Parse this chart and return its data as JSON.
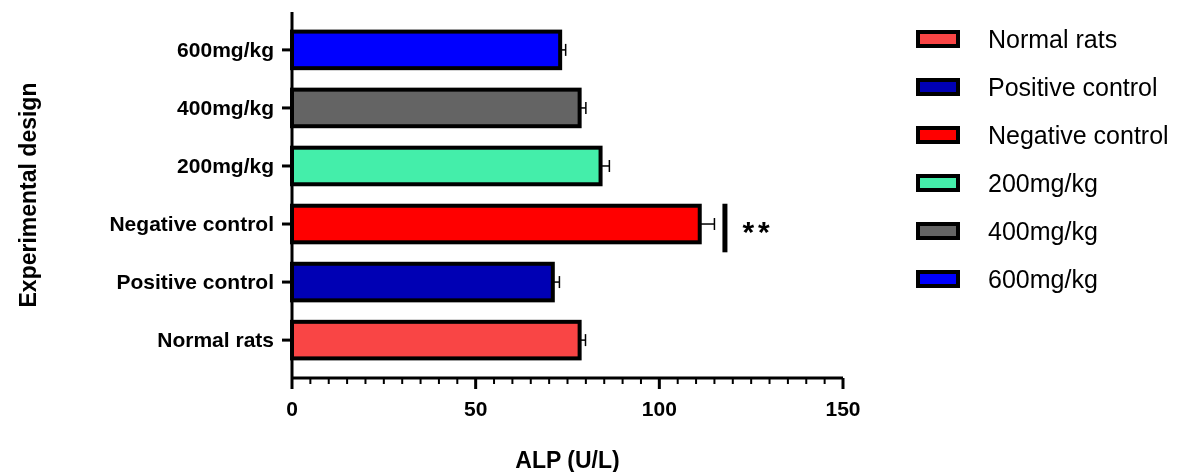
{
  "chart_data": {
    "type": "bar",
    "orientation": "horizontal",
    "xlabel": "ALP (U/L)",
    "ylabel": "Experimental design",
    "categories": [
      "600mg/kg",
      "400mg/kg",
      "200mg/kg",
      "Negative control",
      "Positive control",
      "Normal rats"
    ],
    "series": [
      {
        "name": "Normal rats",
        "color": "#f94545",
        "values": [
          null,
          null,
          null,
          null,
          null,
          78.3
        ],
        "errors": [
          null,
          null,
          null,
          null,
          null,
          1.6
        ]
      },
      {
        "name": "Positive control",
        "color": "#0000b4",
        "values": [
          null,
          null,
          null,
          null,
          71,
          null
        ],
        "errors": [
          null,
          null,
          null,
          null,
          1.8,
          null
        ]
      },
      {
        "name": "Negative control",
        "color": "#ff0000",
        "values": [
          null,
          null,
          null,
          111,
          null,
          null
        ],
        "errors": [
          null,
          null,
          null,
          4,
          null,
          null
        ]
      },
      {
        "name": "200mg/kg",
        "color": "#44eeaa",
        "values": [
          null,
          null,
          84,
          null,
          null,
          null
        ],
        "errors": [
          null,
          null,
          2.4,
          null,
          null,
          null
        ]
      },
      {
        "name": "400mg/kg",
        "color": "#646464",
        "values": [
          null,
          78.3,
          null,
          null,
          null,
          null
        ],
        "errors": [
          null,
          1.7,
          null,
          null,
          null,
          null
        ]
      },
      {
        "name": "600mg/kg",
        "color": "#0000ff",
        "values": [
          73,
          null,
          null,
          null,
          null,
          null
        ],
        "errors": [
          1.5,
          null,
          null,
          null,
          null,
          null
        ]
      }
    ],
    "xlim": [
      0,
      150
    ],
    "xticks": [
      0,
      {
        "value": 5,
        "label": null
      },
      {
        "value": 10,
        "label": null
      },
      {
        "value": 15,
        "label": null
      },
      {
        "value": 20,
        "label": null
      },
      {
        "value": 25,
        "label": null
      },
      {
        "value": 30,
        "label": null
      },
      {
        "value": 35,
        "label": null
      },
      {
        "value": 40,
        "label": null
      },
      {
        "value": 45,
        "label": null
      },
      50,
      {
        "value": 55,
        "label": null
      },
      {
        "value": 60,
        "label": null
      },
      {
        "value": 65,
        "label": null
      },
      {
        "value": 70,
        "label": null
      },
      {
        "value": 75,
        "label": null
      },
      {
        "value": 80,
        "label": null
      },
      {
        "value": 85,
        "label": null
      },
      {
        "value": 90,
        "label": null
      },
      {
        "value": 95,
        "label": null
      },
      100,
      {
        "value": 105,
        "label": null
      },
      {
        "value": 110,
        "label": null
      },
      {
        "value": 115,
        "label": null
      },
      {
        "value": 120,
        "label": null
      },
      {
        "value": 125,
        "label": null
      },
      {
        "value": 130,
        "label": null
      },
      {
        "value": 135,
        "label": null
      },
      {
        "value": 140,
        "label": null
      },
      {
        "value": 145,
        "label": null
      },
      150
    ],
    "legend": "right",
    "annotations": [
      "**"
    ]
  }
}
